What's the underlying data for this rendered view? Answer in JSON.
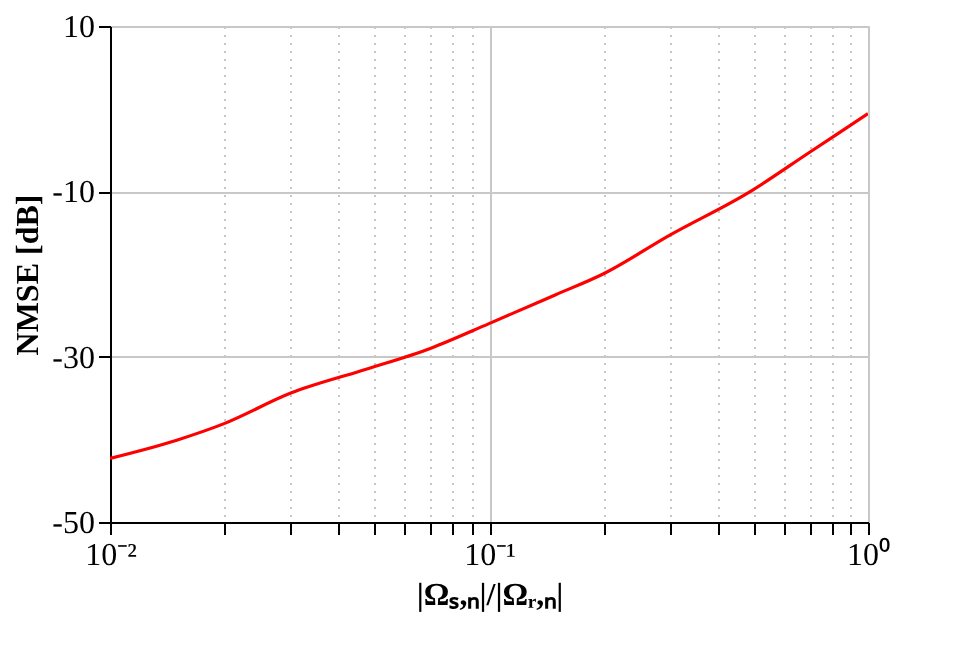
{
  "chart_data": {
    "type": "line",
    "xlabel": "|Ωₛ,ₙ|/|Ωᵣ,ₙ|",
    "ylabel": "NMSE [dB]",
    "log": "x",
    "grid": true,
    "line_style": "solid",
    "marker": "none",
    "x": [
      0.01,
      0.015,
      0.02,
      0.03,
      0.046,
      0.07,
      0.1,
      0.15,
      0.2,
      0.3,
      0.49,
      0.7,
      1
    ],
    "series": [
      {
        "color": "#ff0000",
        "values": [
          -42.3,
          -40.1,
          -38.1,
          -34.4,
          -31.7,
          -29,
          -26,
          -22.5,
          -20,
          -15.3,
          -10,
          -5.3,
          -0.6
        ]
      }
    ],
    "xlim": [
      0.01,
      1
    ],
    "ylim": [
      -50,
      10
    ],
    "xticks": [
      {
        "value": 0.01,
        "label": "10⁻²"
      },
      {
        "value": 0.02,
        "label": null
      },
      {
        "value": 0.03,
        "label": null
      },
      {
        "value": 0.04,
        "label": null
      },
      {
        "value": 0.05,
        "label": null
      },
      {
        "value": 0.06,
        "label": null
      },
      {
        "value": 0.07,
        "label": null
      },
      {
        "value": 0.08,
        "label": null
      },
      {
        "value": 0.09,
        "label": null
      },
      {
        "value": 0.1,
        "label": "10⁻¹"
      },
      {
        "value": 0.2,
        "label": null
      },
      {
        "value": 0.3,
        "label": null
      },
      {
        "value": 0.4,
        "label": null
      },
      {
        "value": 0.5,
        "label": null
      },
      {
        "value": 0.6,
        "label": null
      },
      {
        "value": 0.7,
        "label": null
      },
      {
        "value": 0.8,
        "label": null
      },
      {
        "value": 0.9,
        "label": null
      },
      {
        "value": 1,
        "label": "10⁰"
      }
    ],
    "yticks": [
      -50,
      -30,
      -10,
      10
    ]
  }
}
